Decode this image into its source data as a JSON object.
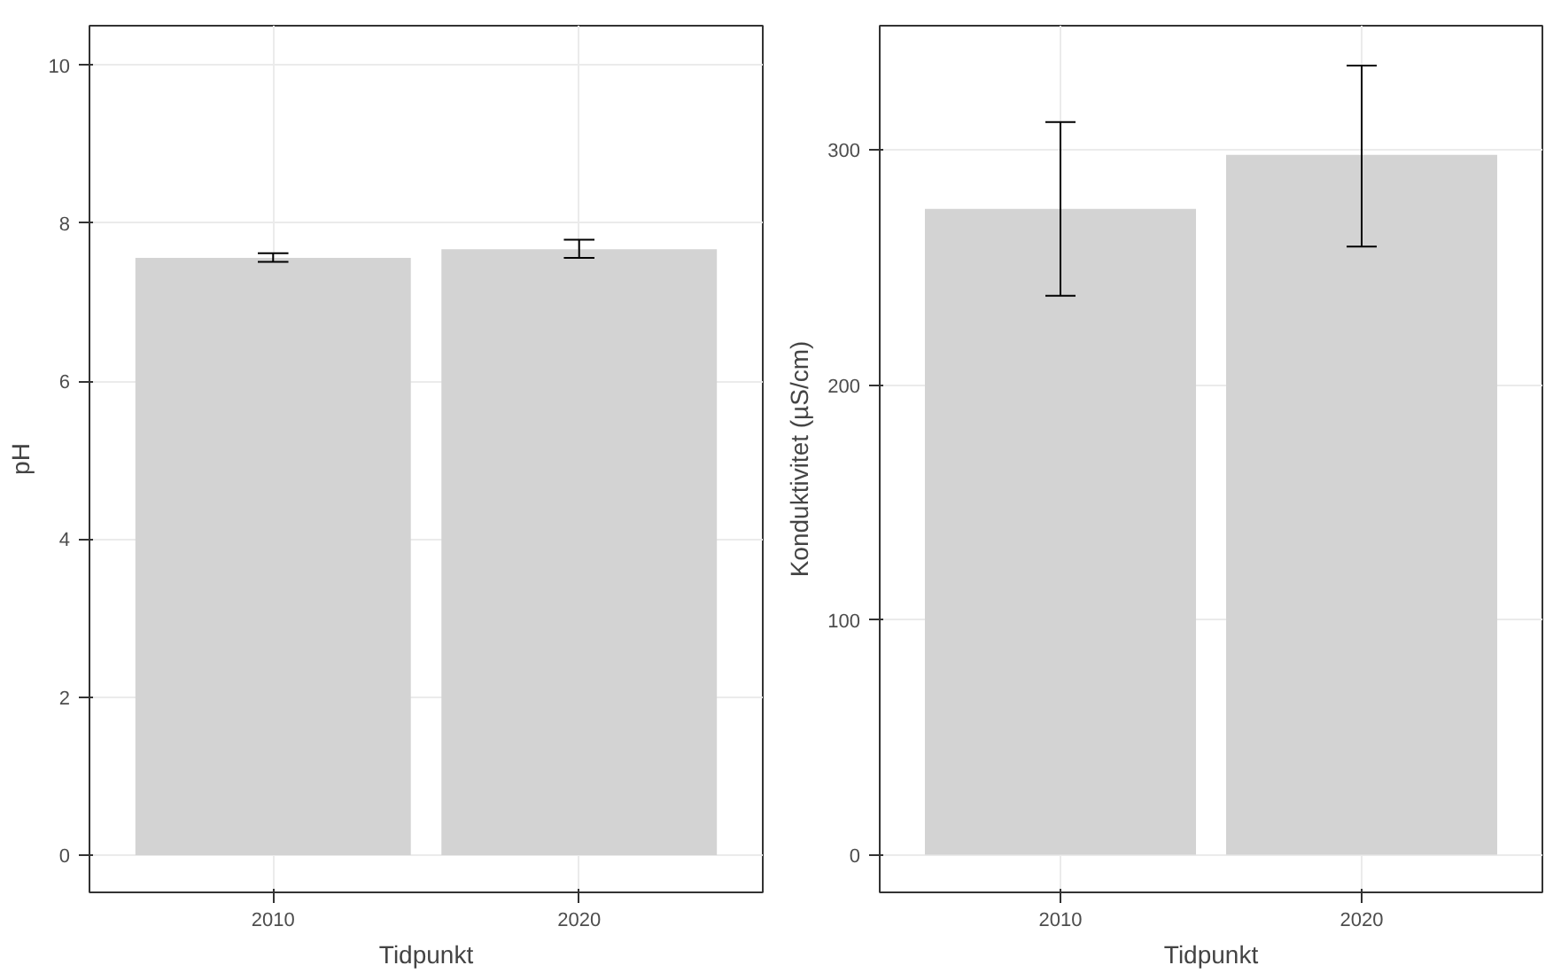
{
  "chart_data": [
    {
      "type": "bar",
      "categories": [
        "2010",
        "2020"
      ],
      "values": [
        7.56,
        7.67
      ],
      "errors": [
        [
          7.51,
          7.62
        ],
        [
          7.56,
          7.79
        ]
      ],
      "color": "#d3d3d3",
      "xlabel": "Tidpunkt",
      "ylabel": "pH",
      "ylim": [
        -0.47,
        10.5
      ],
      "yticks": [
        0,
        2,
        4,
        6,
        8,
        10
      ],
      "grid": true
    },
    {
      "type": "bar",
      "categories": [
        "2010",
        "2020"
      ],
      "values": [
        275,
        298
      ],
      "errors": [
        [
          238,
          312
        ],
        [
          259,
          336
        ]
      ],
      "color": "#d3d3d3",
      "xlabel": "Tidpunkt",
      "ylabel": "Konduktivitet (µS/cm)",
      "ylim": [
        -16,
        353
      ],
      "yticks": [
        0,
        100,
        200,
        300
      ],
      "grid": true
    }
  ]
}
